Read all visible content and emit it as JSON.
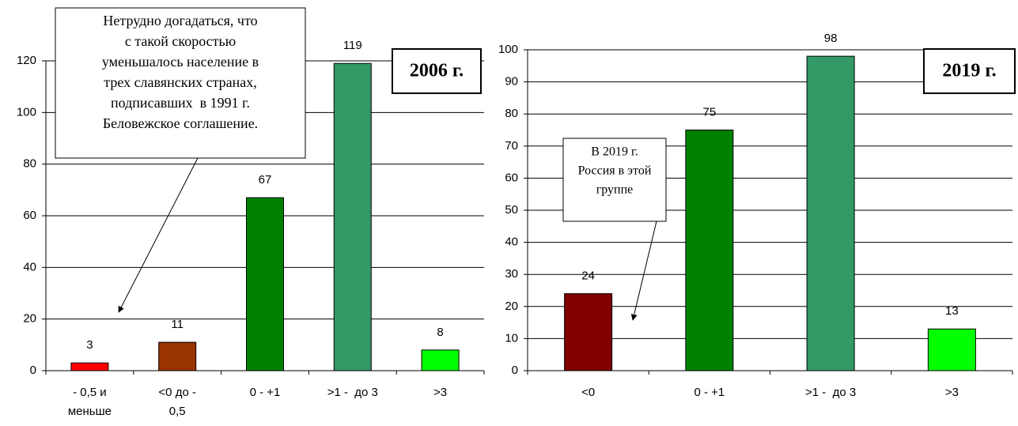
{
  "chart_data": [
    {
      "type": "bar",
      "label": "2006 г.",
      "categories": [
        "- 0,5 и меньше",
        "<0 до - 0,5",
        "0 - +1",
        ">1 -  до 3",
        ">3"
      ],
      "values": [
        3,
        11,
        67,
        119,
        8
      ],
      "colors": [
        "#ff0000",
        "#993300",
        "#008000",
        "#339966",
        "#00ff00"
      ],
      "ylim": [
        0,
        120
      ],
      "yticks": [
        0,
        20,
        40,
        60,
        80,
        100,
        120
      ],
      "grid": true,
      "annotation": [
        "Нетрудно догадаться, что",
        "с такой скоростью",
        "уменьшалось население в",
        "трех славянских странах,",
        "подписавших  в 1991 г.",
        "Беловежское соглашение."
      ]
    },
    {
      "type": "bar",
      "label": "2019 г.",
      "categories": [
        "<0",
        "0 - +1",
        ">1 -  до 3",
        ">3"
      ],
      "values": [
        24,
        75,
        98,
        13
      ],
      "colors": [
        "#800000",
        "#008000",
        "#339966",
        "#00ff00"
      ],
      "ylim": [
        0,
        100
      ],
      "yticks": [
        0,
        10,
        20,
        30,
        40,
        50,
        60,
        70,
        80,
        90,
        100
      ],
      "grid": true,
      "annotation": [
        "В 2019 г.",
        "Россия в этой",
        "группе"
      ]
    }
  ]
}
